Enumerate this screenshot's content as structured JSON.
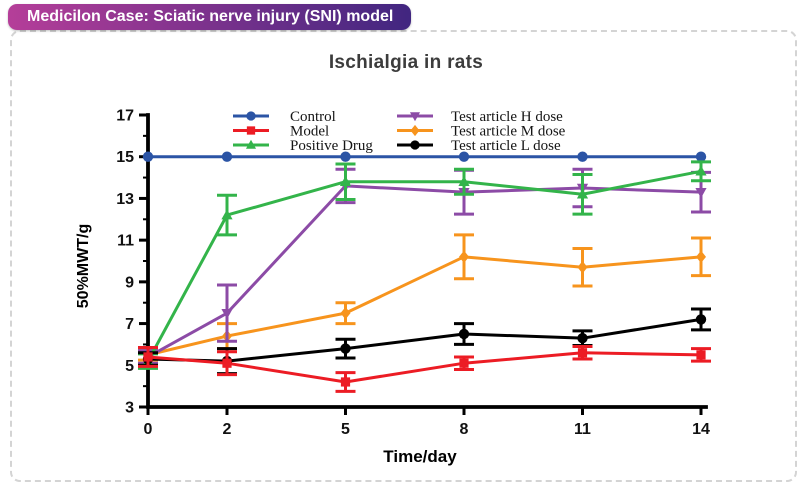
{
  "badge": {
    "label": "Medicilon Case: Sciatic nerve injury (SNI) model",
    "gradient_start": "#b53e99",
    "gradient_end": "#412680"
  },
  "chart_data": {
    "type": "line",
    "title": "Ischialgia in rats",
    "xlabel": "Time/day",
    "ylabel": "50%MWT/g",
    "x": [
      0,
      2,
      5,
      8,
      11,
      14
    ],
    "xlim": [
      0,
      14
    ],
    "ylim": [
      3,
      17
    ],
    "yticks": [
      3,
      5,
      7,
      9,
      11,
      13,
      15,
      17
    ],
    "y_minor_ticks": [
      4,
      6,
      8,
      10,
      12,
      14,
      16
    ],
    "grid": false,
    "legend_position": "inside-top",
    "series": [
      {
        "name": "Control",
        "color": "#2b54a5",
        "marker": "circle",
        "values": [
          15,
          15,
          15,
          15,
          15,
          15
        ],
        "errors": [
          0,
          0,
          0,
          0,
          0,
          0
        ]
      },
      {
        "name": "Model",
        "color": "#ec1c24",
        "marker": "square",
        "values": [
          5.4,
          5.1,
          4.2,
          5.1,
          5.6,
          5.5
        ],
        "errors": [
          0.45,
          0.55,
          0.45,
          0.3,
          0.3,
          0.3
        ]
      },
      {
        "name": "Positive Drug",
        "color": "#33b44a",
        "marker": "triangle-up",
        "values": [
          5.2,
          12.2,
          13.8,
          13.8,
          13.2,
          14.3
        ],
        "errors": [
          0.35,
          0.95,
          0.85,
          0.6,
          0.95,
          0.45
        ]
      },
      {
        "name": "Test article H dose",
        "color": "#8c4ba6",
        "marker": "triangle-down",
        "values": [
          5.4,
          7.5,
          13.6,
          13.3,
          13.5,
          13.3
        ],
        "errors": [
          0.3,
          1.35,
          0.8,
          1.05,
          0.9,
          0.95
        ]
      },
      {
        "name": "Test article M dose",
        "color": "#f7941d",
        "marker": "diamond",
        "values": [
          5.5,
          6.4,
          7.5,
          10.2,
          9.7,
          10.2
        ],
        "errors": [
          0.25,
          0.6,
          0.5,
          1.05,
          0.9,
          0.9
        ]
      },
      {
        "name": "Test article L dose",
        "color": "#000000",
        "marker": "circle",
        "values": [
          5.3,
          5.2,
          5.8,
          6.5,
          6.3,
          7.2
        ],
        "errors": [
          0.3,
          0.6,
          0.45,
          0.5,
          0.35,
          0.5
        ]
      }
    ]
  }
}
